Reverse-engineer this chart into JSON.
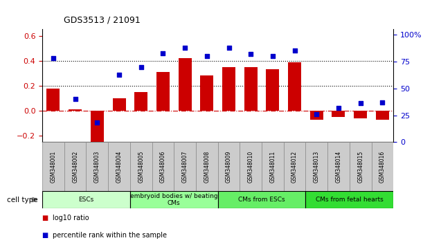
{
  "title": "GDS3513 / 21091",
  "samples": [
    "GSM348001",
    "GSM348002",
    "GSM348003",
    "GSM348004",
    "GSM348005",
    "GSM348006",
    "GSM348007",
    "GSM348008",
    "GSM348009",
    "GSM348010",
    "GSM348011",
    "GSM348012",
    "GSM348013",
    "GSM348014",
    "GSM348015",
    "GSM348016"
  ],
  "log10_ratio": [
    0.18,
    0.01,
    -0.27,
    0.1,
    0.15,
    0.31,
    0.42,
    0.28,
    0.35,
    0.35,
    0.33,
    0.39,
    -0.07,
    -0.05,
    -0.06,
    -0.07
  ],
  "percentile_rank": [
    78,
    40,
    18,
    63,
    70,
    83,
    88,
    80,
    88,
    82,
    80,
    85,
    26,
    32,
    36,
    37
  ],
  "ylim_left": [
    -0.25,
    0.65
  ],
  "ylim_right": [
    0,
    105
  ],
  "yticks_left": [
    -0.2,
    0.0,
    0.2,
    0.4,
    0.6
  ],
  "yticks_right": [
    0,
    25,
    50,
    75,
    100
  ],
  "ytick_labels_right": [
    "0",
    "25",
    "50",
    "75",
    "100%"
  ],
  "hline_dotted": [
    0.2,
    0.4
  ],
  "hline_dashdot": 0.0,
  "bar_color": "#cc0000",
  "dot_color": "#0000cc",
  "cell_type_groups": [
    {
      "label": "ESCs",
      "start": 0,
      "end": 3,
      "color": "#ccffcc"
    },
    {
      "label": "embryoid bodies w/ beating\nCMs",
      "start": 4,
      "end": 7,
      "color": "#99ff99"
    },
    {
      "label": "CMs from ESCs",
      "start": 8,
      "end": 11,
      "color": "#66ee66"
    },
    {
      "label": "CMs from fetal hearts",
      "start": 12,
      "end": 15,
      "color": "#33dd33"
    }
  ],
  "cell_type_label": "cell type",
  "legend_items": [
    {
      "label": "log10 ratio",
      "color": "#cc0000"
    },
    {
      "label": "percentile rank within the sample",
      "color": "#0000cc"
    }
  ],
  "bar_color_left": "#cc0000",
  "dot_color_right": "#0000cc",
  "background_color": "#ffffff",
  "plot_bg_color": "#ffffff",
  "sample_box_color": "#cccccc",
  "sample_box_edge": "#888888"
}
